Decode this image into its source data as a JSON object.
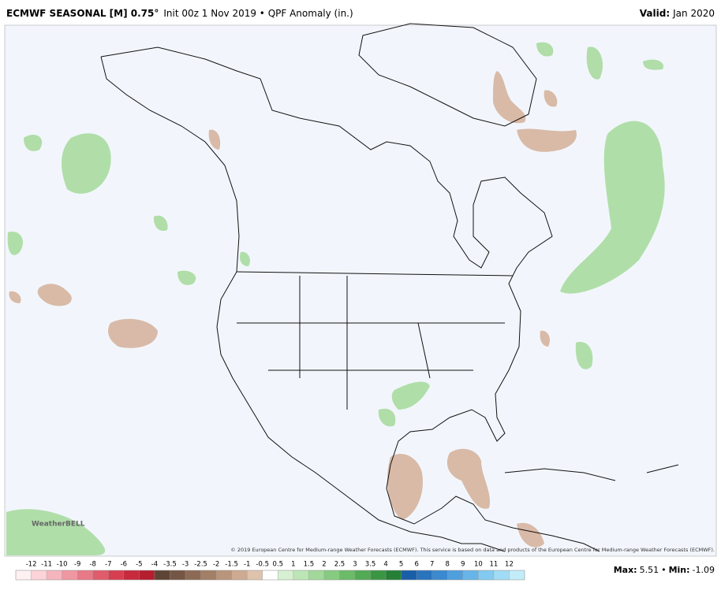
{
  "header": {
    "title": "ECMWF SEASONAL [M] 0.75°",
    "subtitle": "Init 00z 1 Nov 2019 • QPF Anomaly (in.)",
    "valid_label": "Valid:",
    "valid": "Jan 2020"
  },
  "map": {
    "credit": "© 2019 European Centre for Medium-range Weather Forecasts (ECMWF). This service is based on data and products of the European Centre for Medium-range Weather Forecasts (ECMWF).",
    "logo": "WeatherBELL"
  },
  "colorbar": {
    "ticks": [
      -12,
      -11,
      -10,
      -9,
      -8,
      -7,
      -6,
      -5,
      -4,
      -3.5,
      -3,
      -2.5,
      -2,
      -1.5,
      -1,
      -0.5,
      0.5,
      1,
      1.5,
      2,
      2.5,
      3,
      3.5,
      4,
      5,
      6,
      7,
      8,
      9,
      10,
      11,
      12
    ],
    "colors": [
      "#fff0f2",
      "#fbd3d8",
      "#f5b5bd",
      "#ef97a2",
      "#e87986",
      "#e05c6b",
      "#d63f51",
      "#c82a3d",
      "#b51e2e",
      "#5e4434",
      "#755644",
      "#8c6a55",
      "#a37f68",
      "#b9957c",
      "#cdab93",
      "#dfc3ad",
      "#ffffff",
      "#d7f0d2",
      "#bde6b6",
      "#a2d99b",
      "#86cb81",
      "#6bbb69",
      "#52aa55",
      "#3b9644",
      "#257f36",
      "#1b5ea8",
      "#2a73bd",
      "#3b89cf",
      "#4f9fdd",
      "#67b5e8",
      "#82caf0",
      "#a0dcf5",
      "#c2edf8"
    ]
  },
  "stats": {
    "max_label": "Max:",
    "max": 5.51,
    "sep": "•",
    "min_label": "Min:",
    "min": -1.09
  }
}
